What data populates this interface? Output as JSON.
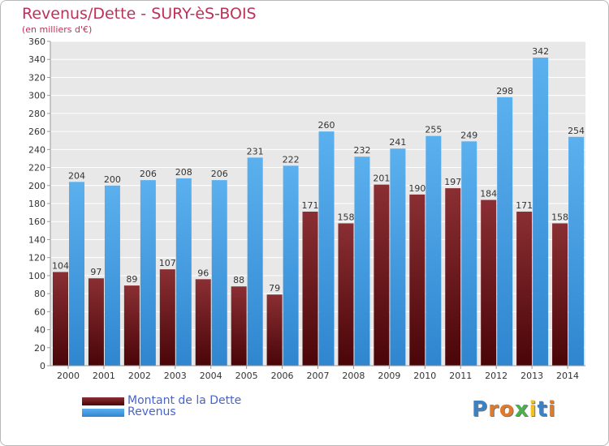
{
  "title": "Revenus/Dette - SURY-èS-BOIS",
  "subtitle": "(en milliers d'€)",
  "brand": {
    "text": "Proxiti",
    "letter_colors": [
      "#3b82c4",
      "#e07b2a",
      "#e07b2a",
      "#4caf50",
      "#f2c21b",
      "#3b82c4",
      "#e07b2a"
    ]
  },
  "chart_data": {
    "type": "bar",
    "title": "Revenus/Dette - SURY-èS-BOIS",
    "subtitle": "(en milliers d'€)",
    "categories": [
      "2000",
      "2001",
      "2002",
      "2003",
      "2004",
      "2005",
      "2006",
      "2007",
      "2008",
      "2009",
      "2010",
      "2011",
      "2012",
      "2013",
      "2014"
    ],
    "series": [
      {
        "name": "Montant de la Dette",
        "color": "#6b1a1e",
        "values": [
          104,
          97,
          89,
          107,
          96,
          88,
          79,
          171,
          158,
          201,
          190,
          197,
          184,
          171,
          158
        ]
      },
      {
        "name": "Revenus",
        "color": "#4aa3e6",
        "values": [
          204,
          200,
          206,
          208,
          206,
          231,
          222,
          260,
          232,
          241,
          255,
          249,
          298,
          342,
          254
        ]
      }
    ],
    "ylim": [
      0,
      360
    ],
    "ytick_step": 20,
    "grid": true,
    "legend": "bottom-left"
  }
}
